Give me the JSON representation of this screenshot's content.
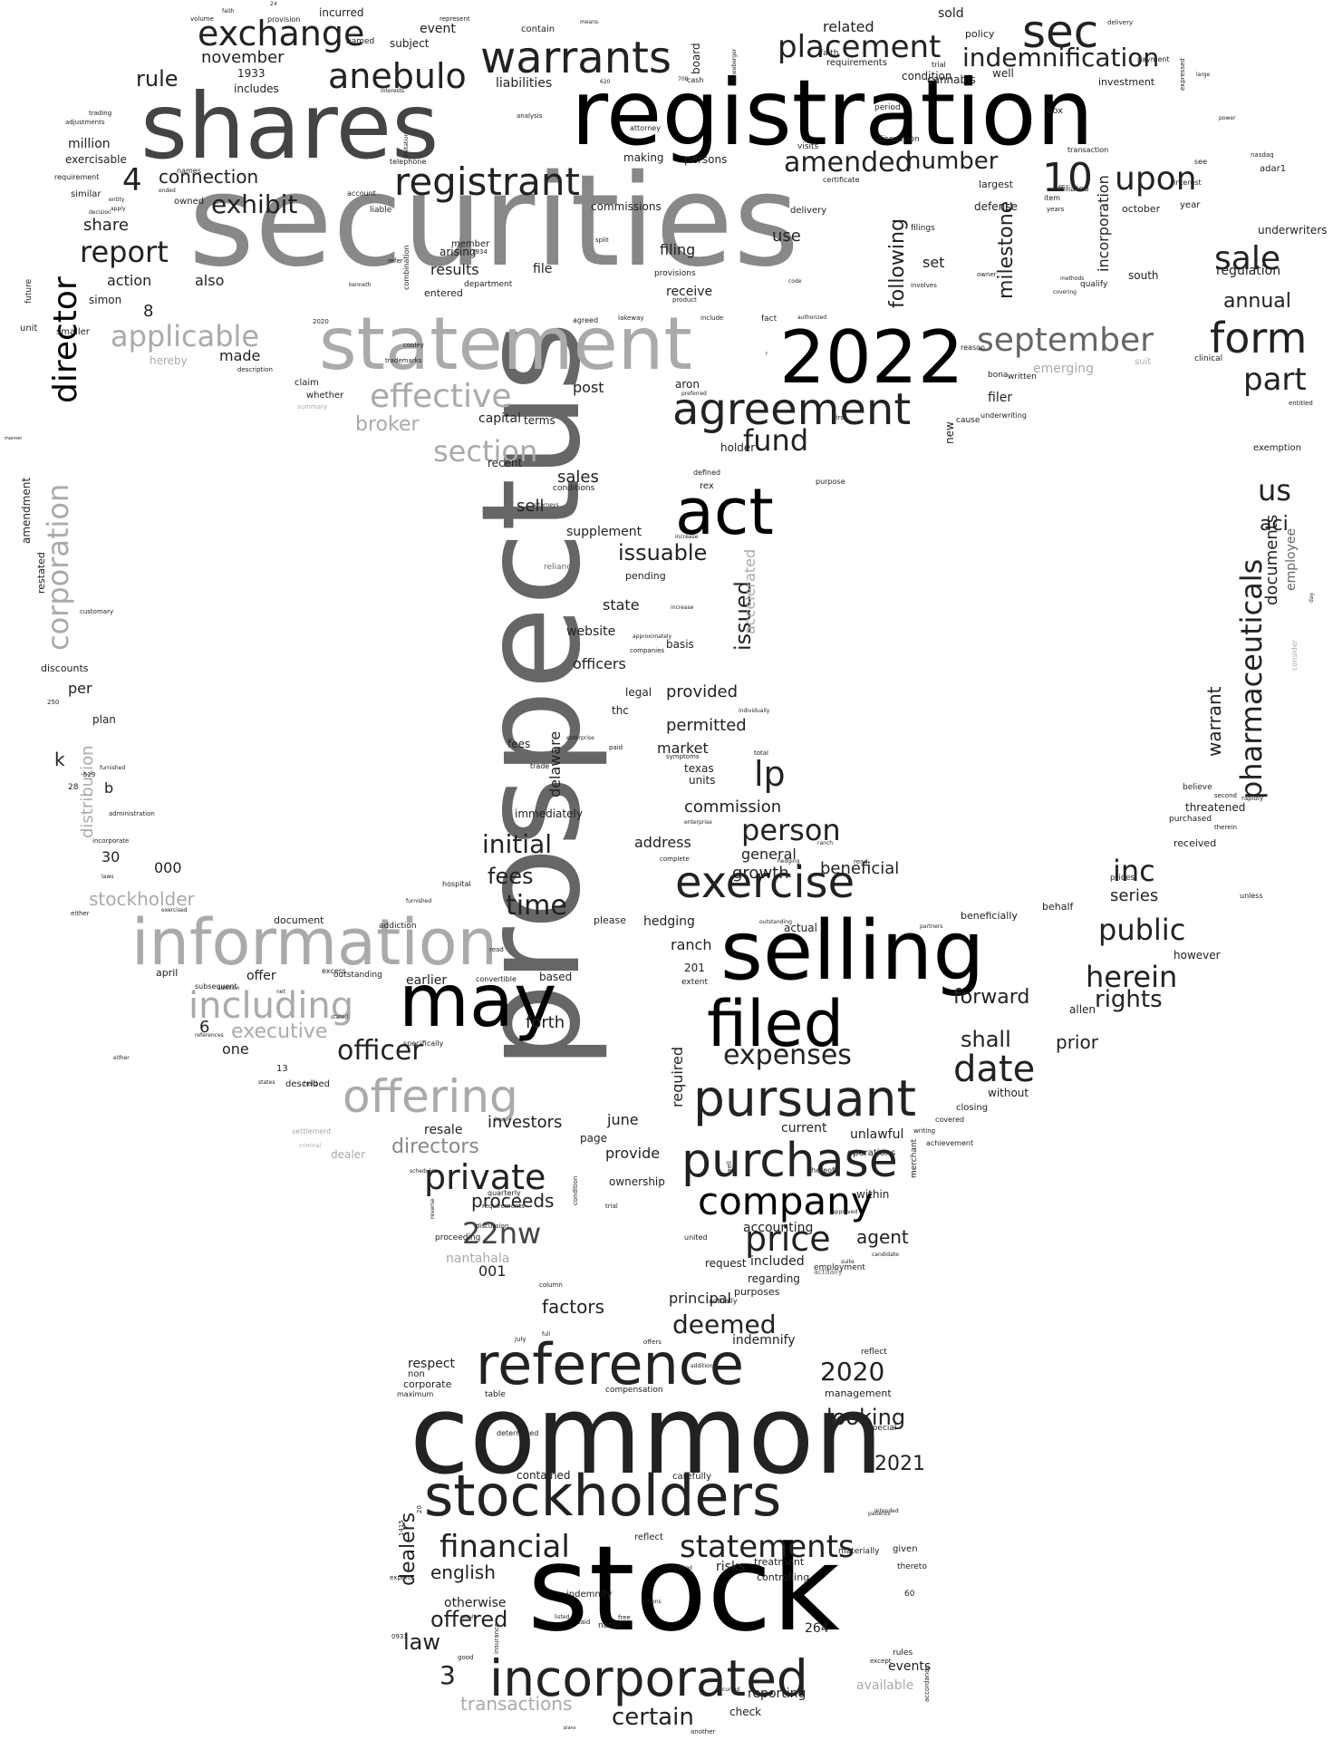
{
  "words": [
    "securities",
    "prospectus",
    "registration",
    "shares",
    "stock",
    "common",
    "selling",
    "statement",
    "2022",
    "may",
    "information",
    "stockholders",
    "reference",
    "incorporated",
    "act",
    "filed",
    "pursuant",
    "purchase",
    "exercise",
    "agreement",
    "warrants",
    "offering",
    "sec",
    "form",
    "company",
    "registrant",
    "exchange",
    "anebulo",
    "placement",
    "director",
    "private",
    "price",
    "date",
    "pharmaceuticals",
    "22nw",
    "effective",
    "applicable",
    "including",
    "statements",
    "financial",
    "september",
    "corporation",
    "upon",
    "sale",
    "amended",
    "10",
    "indemnification",
    "exhibit",
    "report",
    "4",
    "fund",
    "lp",
    "person",
    "public",
    "herein",
    "inc",
    "us",
    "officer",
    "rights",
    "time",
    "initial",
    "fees",
    "expenses",
    "section",
    "broker",
    "deemed",
    "2020",
    "looking",
    "2021",
    "certain",
    "offered",
    "3",
    "transactions",
    "law",
    "english",
    "dealers",
    "stockholder",
    "distribution",
    "directors",
    "executive",
    "milestone",
    "issuable",
    "issued",
    "rule",
    "connection",
    "number",
    "following",
    "incorporation",
    "annual",
    "part",
    "aci",
    "warrant",
    "documents",
    "employee",
    "series",
    "forward",
    "shall",
    "prior",
    "proceeds",
    "agent",
    "included",
    "delaware",
    "market",
    "provided",
    "permitted",
    "commission",
    "general",
    "beneficial",
    "growth",
    "public",
    "actual",
    "accelerated",
    "sell",
    "sales",
    "supplement",
    "state",
    "officers",
    "legal",
    "thc",
    "website",
    "basis",
    "texas",
    "units",
    "address",
    "immediately",
    "earlier",
    "forth",
    "based",
    "required",
    "investors",
    "page",
    "resale",
    "june",
    "provide",
    "ownership",
    "accounting",
    "regarding",
    "purposes",
    "factors",
    "principal",
    "indemnify",
    "management",
    "treatment",
    "risks",
    "controlling",
    "indemnity",
    "events",
    "reporting",
    "available",
    "check",
    "contained",
    "carefully",
    "respect",
    "corporate",
    "non",
    "maximum",
    "table",
    "compensation",
    "additional",
    "otherwise",
    "name",
    "listed",
    "264",
    "rules",
    "november",
    "1933",
    "includes",
    "incurred",
    "related",
    "sold",
    "policy",
    "board",
    "liabilities",
    "cannabis",
    "million",
    "exercisable",
    "similar",
    "owned",
    "share",
    "action",
    "also",
    "simon",
    "8",
    "made",
    "hereby",
    "smaller",
    "unit",
    "future",
    "amendment",
    "restated",
    "discounts",
    "per",
    "plan",
    "k",
    "b",
    "28",
    "administration",
    "30",
    "000",
    "document",
    "offer",
    "april",
    "6",
    "one",
    "13",
    "described",
    "settlement",
    "dealer",
    "criminal",
    "subject",
    "event",
    "named",
    "contain",
    "filing",
    "receive",
    "results",
    "entered",
    "file",
    "use",
    "set",
    "commissions",
    "persons",
    "making",
    "provisions",
    "filer",
    "new",
    "cause",
    "emerging",
    "suit",
    "clinical",
    "entitled",
    "exemption",
    "portion",
    "day",
    "consider",
    "therein",
    "received",
    "threatened",
    "purchased",
    "second",
    "rapidly",
    "believe",
    "prices",
    "unless",
    "behalf",
    "beneficially",
    "partners",
    "however",
    "allen",
    "without",
    "closing",
    "covered",
    "achievement",
    "writing",
    "merchant",
    "operations",
    "unlawful",
    "within",
    "current",
    "thereof",
    "approved",
    "candidate",
    "employment",
    "suite",
    "request",
    "actually",
    "001",
    "nantahala",
    "proceeding",
    "certificate",
    "visits",
    "discussion",
    "requirements",
    "trial",
    "condition",
    "well",
    "delivery",
    "payment",
    "expressed",
    "opinion",
    "emergency",
    "business",
    "large",
    "power",
    "become",
    "adar1",
    "nasdaq",
    "data",
    "gross",
    "drug",
    "exhibits",
    "amounts",
    "foregoing",
    "regulation",
    "underwriters",
    "south",
    "october",
    "year",
    "dated",
    "chief",
    "investment",
    "transaction",
    "see",
    "interest",
    "reasonably",
    "affiliated",
    "item",
    "years",
    "defense",
    "filings",
    "largest",
    "bona",
    "fiscal",
    "box",
    "period",
    "two",
    "dates",
    "daniel",
    "pay",
    "reason",
    "written",
    "underwriting",
    "first",
    "purpose",
    "defined",
    "rex",
    "negotiated",
    "holder",
    "recent",
    "capital",
    "terms",
    "post",
    "aron",
    "preferred",
    "attorneys",
    "conditions",
    "pending",
    "reliance",
    "increase",
    "approximately",
    "companies",
    "individually",
    "total",
    "symptoms",
    "trade",
    "paid",
    "complete",
    "enterprise",
    "extent",
    "201",
    "convertible",
    "please",
    "hedging",
    "read",
    "ranch",
    "outstanding",
    "excess",
    "stated",
    "addition",
    "net",
    "states",
    "held",
    "specifically",
    "schedules",
    "reverse",
    "references",
    "addiction",
    "hospital",
    "exercised",
    "incorporate",
    "laws",
    "subsequent",
    "either",
    "furnished",
    "529",
    "250",
    "manner",
    "customary",
    "quarterly",
    "united",
    "column",
    "july",
    "offers",
    "full",
    "determined",
    "20",
    "1415",
    "0931",
    "good",
    "insurance",
    "result",
    "experts",
    "road",
    "free",
    "actions",
    "completed",
    "costs",
    "materially",
    "thereto",
    "60",
    "given",
    "intended",
    "since",
    "special",
    "reflect",
    "patients",
    "accordance",
    "except",
    "specified",
    "said",
    "plans",
    "another",
    "occurred",
    "adjustments",
    "trading",
    "apply",
    "entity",
    "ended",
    "requirement",
    "decision",
    "names",
    "reflected",
    "represent",
    "liable",
    "account",
    "telephone",
    "kenneth",
    "combination",
    "refer",
    "2020",
    "cooley",
    "trademarks",
    "description",
    "whether",
    "claim",
    "summary",
    "1934",
    "department",
    "member",
    "arising",
    "split",
    "agreed",
    "lakeway",
    "product",
    "different",
    "include",
    "fact",
    "r",
    "code",
    "authorized",
    "involves",
    "qualify",
    "covering",
    "methods",
    "owner",
    "attorney",
    "analysis",
    "limitation",
    "interests",
    "cash",
    "schneeberger",
    "708",
    "620",
    "means",
    "provision",
    "volume",
    "24",
    "faith",
    "callaway",
    "limited",
    "limitations",
    "purchasers",
    "78734",
    "compliance",
    "relating",
    "file",
    "2022"
  ]
}
